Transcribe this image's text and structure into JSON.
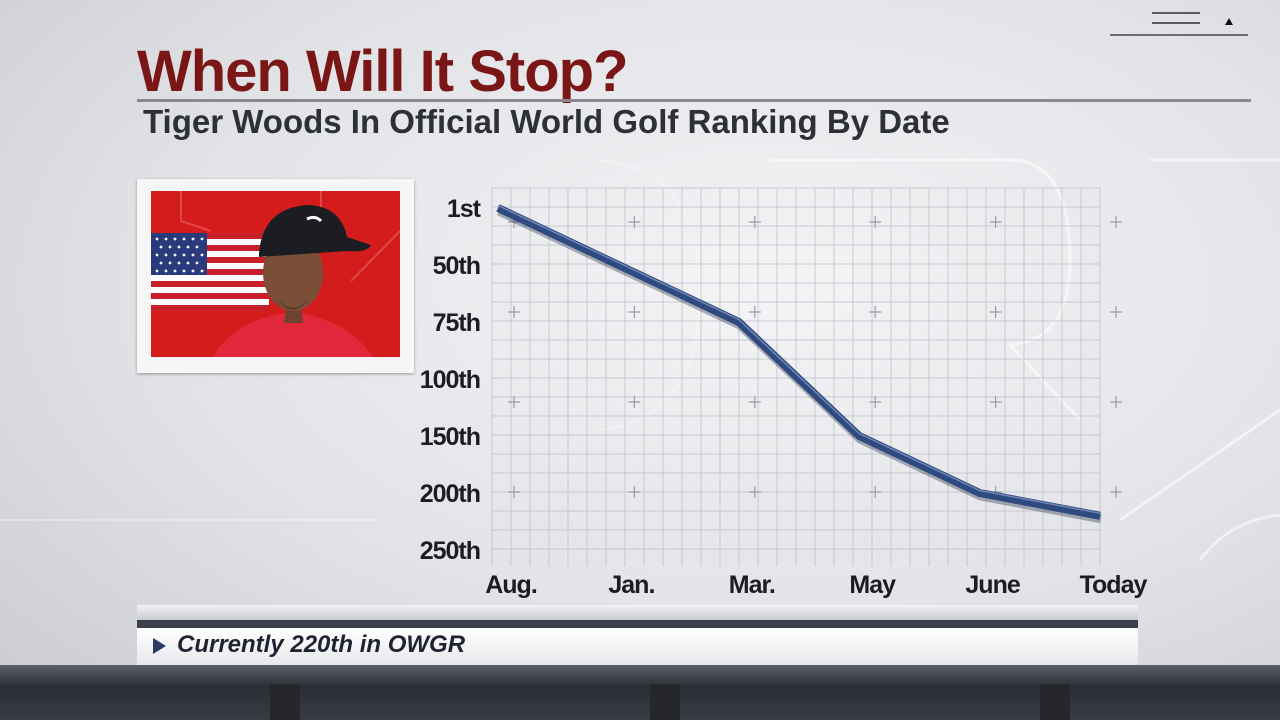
{
  "title": "When Will It Stop?",
  "subtitle": "Tiger Woods In Official World Golf Ranking By Date",
  "lower_third": "Currently 220th in OWGR",
  "icons": [
    "flag-icon",
    "player-photo",
    "play-arrow-icon",
    "network-logo-icon"
  ],
  "colors": {
    "title": "#7a1616",
    "line": "#2f4a7f",
    "photo_background": "#d41c1c",
    "text": "#1f2230"
  },
  "chart_data": {
    "type": "line",
    "title": "When Will It Stop?",
    "subtitle": "Tiger Woods In Official World Golf Ranking By Date",
    "xlabel": "",
    "ylabel": "",
    "categories": [
      "Aug.",
      "Jan.",
      "Mar.",
      "May",
      "June",
      "Today"
    ],
    "y_ticks": [
      "1st",
      "50th",
      "75th",
      "100th",
      "150th",
      "200th",
      "250th"
    ],
    "y_axis_inverted": true,
    "grid": true,
    "series": [
      {
        "values": [
          1,
          50,
          75,
          150,
          200,
          220
        ]
      }
    ]
  }
}
